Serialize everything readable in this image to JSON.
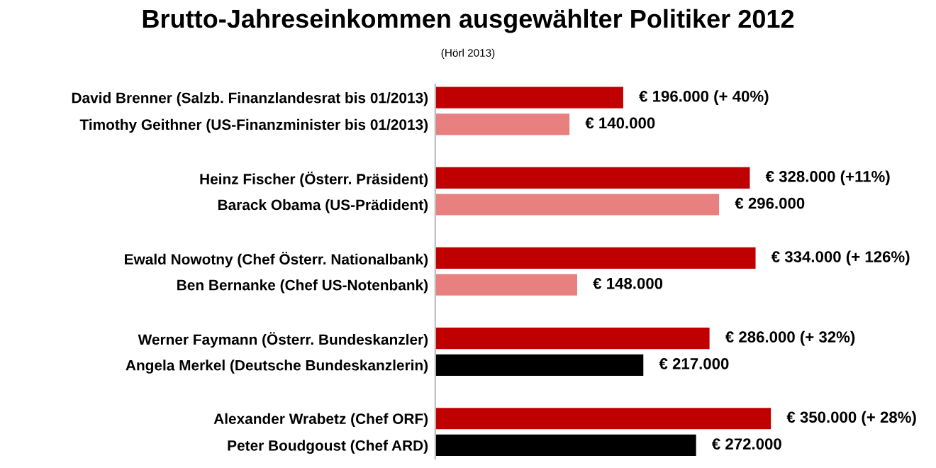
{
  "chart_data": {
    "type": "bar",
    "orientation": "horizontal",
    "title": "Brutto-Jahreseinkommen ausgewählter Politiker 2012",
    "subtitle": "(Hörl 2013)",
    "categories": [
      "David Brenner (Salzb. Finanzlandesrat bis 01/2013)",
      "Timothy Geithner (US-Finanzminister bis 01/2013)",
      null,
      "Heinz Fischer (Österr. Präsident)",
      "Barack Obama (US-Prädident)",
      null,
      "Ewald Nowotny (Chef Österr. Nationalbank)",
      "Ben Bernanke (Chef US-Notenbank)",
      null,
      "Werner Faymann (Österr. Bundeskanzler)",
      "Angela Merkel (Deutsche Bundeskanzlerin)",
      null,
      "Alexander Wrabetz (Chef ORF)",
      "Peter Boudgoust (Chef ARD)"
    ],
    "values": [
      196000,
      140000,
      null,
      328000,
      296000,
      null,
      334000,
      148000,
      null,
      286000,
      217000,
      null,
      350000,
      272000
    ],
    "colors": [
      "#c00000",
      "#e88080",
      null,
      "#c00000",
      "#e88080",
      null,
      "#c00000",
      "#e88080",
      null,
      "#c00000",
      "#000000",
      null,
      "#c00000",
      "#000000"
    ],
    "value_labels": [
      "€ 196.000 (+ 40%)",
      "€ 140.000",
      null,
      "€ 328.000 (+11%)",
      "€ 296.000",
      null,
      "€ 334.000 (+ 126%)",
      "€ 148.000",
      null,
      "€ 286.000 (+ 32%)",
      "€ 217.000",
      null,
      "€ 350.000 (+ 28%)",
      "€ 272.000"
    ],
    "tick_labels": "y"
  }
}
